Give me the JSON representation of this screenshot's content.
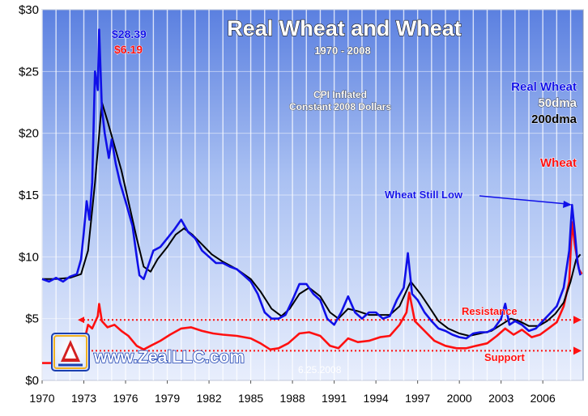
{
  "chart_data": {
    "type": "line",
    "title": "Real Wheat and Wheat",
    "subtitle": "1970 - 2008",
    "note_lines": [
      "CPI Inflated",
      "Constant 2008 Dollars"
    ],
    "xlim": [
      1970,
      2008.9
    ],
    "ylim": [
      0,
      30
    ],
    "x_ticks": [
      "1970",
      "1973",
      "1976",
      "1979",
      "1982",
      "1985",
      "1988",
      "1991",
      "1994",
      "1997",
      "2000",
      "2003",
      "2006"
    ],
    "y_ticks": [
      "$0",
      "$5",
      "$10",
      "$15",
      "$20",
      "$25",
      "$30"
    ],
    "grid": true,
    "legend": [
      {
        "label": "Real Wheat",
        "color": "#1010e8"
      },
      {
        "label": "50dma",
        "color": "#ffffff"
      },
      {
        "label": "200dma",
        "color": "#000000"
      },
      {
        "label": "Wheat",
        "color": "#ff1010"
      }
    ],
    "series": [
      {
        "name": "Real Wheat",
        "color": "#1010e8",
        "points": [
          [
            1970,
            8.2
          ],
          [
            1970.5,
            8.0
          ],
          [
            1971,
            8.3
          ],
          [
            1971.5,
            8.0
          ],
          [
            1972,
            8.4
          ],
          [
            1972.5,
            8.6
          ],
          [
            1972.8,
            9.8
          ],
          [
            1973.0,
            12.0
          ],
          [
            1973.2,
            14.5
          ],
          [
            1973.4,
            13.0
          ],
          [
            1973.6,
            16.0
          ],
          [
            1973.8,
            25.0
          ],
          [
            1974.0,
            23.5
          ],
          [
            1974.1,
            28.39
          ],
          [
            1974.3,
            22.0
          ],
          [
            1974.5,
            20.0
          ],
          [
            1974.8,
            18.0
          ],
          [
            1975.0,
            19.5
          ],
          [
            1975.3,
            17.5
          ],
          [
            1975.6,
            16.0
          ],
          [
            1976.0,
            14.5
          ],
          [
            1976.5,
            12.5
          ],
          [
            1976.8,
            10.0
          ],
          [
            1977.0,
            8.5
          ],
          [
            1977.3,
            8.2
          ],
          [
            1977.7,
            9.5
          ],
          [
            1978.0,
            10.5
          ],
          [
            1978.5,
            10.8
          ],
          [
            1979.0,
            11.5
          ],
          [
            1979.5,
            12.2
          ],
          [
            1980.0,
            13.0
          ],
          [
            1980.5,
            12.0
          ],
          [
            1981.0,
            11.5
          ],
          [
            1981.5,
            10.5
          ],
          [
            1982.0,
            10.0
          ],
          [
            1982.5,
            9.5
          ],
          [
            1983.0,
            9.5
          ],
          [
            1983.5,
            9.2
          ],
          [
            1984.0,
            9.0
          ],
          [
            1984.5,
            8.5
          ],
          [
            1985.0,
            8.0
          ],
          [
            1985.5,
            7.0
          ],
          [
            1986.0,
            5.5
          ],
          [
            1986.5,
            5.0
          ],
          [
            1987.0,
            5.0
          ],
          [
            1987.5,
            5.3
          ],
          [
            1988.0,
            6.5
          ],
          [
            1988.5,
            7.8
          ],
          [
            1989.0,
            7.8
          ],
          [
            1989.5,
            7.0
          ],
          [
            1990.0,
            6.5
          ],
          [
            1990.5,
            5.0
          ],
          [
            1991.0,
            4.5
          ],
          [
            1991.5,
            5.5
          ],
          [
            1992.0,
            6.8
          ],
          [
            1992.5,
            5.5
          ],
          [
            1993.0,
            5.0
          ],
          [
            1993.5,
            5.5
          ],
          [
            1994.0,
            5.5
          ],
          [
            1994.5,
            5.0
          ],
          [
            1995.0,
            5.2
          ],
          [
            1995.5,
            6.5
          ],
          [
            1996.0,
            7.5
          ],
          [
            1996.3,
            10.3
          ],
          [
            1996.6,
            7.0
          ],
          [
            1997.0,
            6.5
          ],
          [
            1997.5,
            5.5
          ],
          [
            1998.0,
            4.8
          ],
          [
            1998.5,
            4.2
          ],
          [
            1999.0,
            4.0
          ],
          [
            1999.5,
            3.7
          ],
          [
            2000.0,
            3.5
          ],
          [
            2000.5,
            3.4
          ],
          [
            2001.0,
            3.8
          ],
          [
            2001.5,
            3.9
          ],
          [
            2002.0,
            3.9
          ],
          [
            2002.5,
            4.2
          ],
          [
            2003.0,
            5.0
          ],
          [
            2003.3,
            6.2
          ],
          [
            2003.6,
            4.5
          ],
          [
            2004.0,
            4.8
          ],
          [
            2004.5,
            4.5
          ],
          [
            2005.0,
            4.0
          ],
          [
            2005.5,
            4.2
          ],
          [
            2006.0,
            4.8
          ],
          [
            2006.5,
            5.4
          ],
          [
            2007.0,
            6.0
          ],
          [
            2007.5,
            7.5
          ],
          [
            2007.9,
            10.5
          ],
          [
            2008.1,
            14.2
          ],
          [
            2008.3,
            12.0
          ],
          [
            2008.5,
            9.5
          ],
          [
            2008.7,
            8.5
          ]
        ]
      },
      {
        "name": "200dma",
        "color": "#000000",
        "points": [
          [
            1970,
            8.2
          ],
          [
            1971,
            8.2
          ],
          [
            1972,
            8.3
          ],
          [
            1972.8,
            8.6
          ],
          [
            1973.3,
            10.5
          ],
          [
            1973.8,
            16.0
          ],
          [
            1974.3,
            22.5
          ],
          [
            1974.7,
            21.0
          ],
          [
            1975.2,
            19.0
          ],
          [
            1975.7,
            17.0
          ],
          [
            1976.2,
            14.5
          ],
          [
            1976.8,
            11.5
          ],
          [
            1977.3,
            9.2
          ],
          [
            1977.8,
            8.8
          ],
          [
            1978.3,
            9.8
          ],
          [
            1979.0,
            10.8
          ],
          [
            1979.6,
            11.8
          ],
          [
            1980.2,
            12.3
          ],
          [
            1980.8,
            11.8
          ],
          [
            1981.5,
            11.0
          ],
          [
            1982.2,
            10.2
          ],
          [
            1983.0,
            9.6
          ],
          [
            1984.0,
            9.0
          ],
          [
            1985.0,
            8.2
          ],
          [
            1985.7,
            7.2
          ],
          [
            1986.5,
            5.8
          ],
          [
            1987.2,
            5.2
          ],
          [
            1987.8,
            5.8
          ],
          [
            1988.5,
            7.0
          ],
          [
            1989.2,
            7.5
          ],
          [
            1990.0,
            6.8
          ],
          [
            1990.7,
            5.5
          ],
          [
            1991.3,
            5.0
          ],
          [
            1992.0,
            5.8
          ],
          [
            1992.7,
            5.6
          ],
          [
            1993.5,
            5.3
          ],
          [
            1994.3,
            5.3
          ],
          [
            1995.0,
            5.3
          ],
          [
            1995.7,
            6.0
          ],
          [
            1996.5,
            8.0
          ],
          [
            1997.2,
            7.0
          ],
          [
            1997.8,
            6.0
          ],
          [
            1998.5,
            4.8
          ],
          [
            1999.2,
            4.2
          ],
          [
            2000.0,
            3.8
          ],
          [
            2000.7,
            3.6
          ],
          [
            2001.5,
            3.8
          ],
          [
            2002.3,
            4.0
          ],
          [
            2003.0,
            4.5
          ],
          [
            2003.7,
            5.0
          ],
          [
            2004.3,
            4.8
          ],
          [
            2005.0,
            4.4
          ],
          [
            2005.7,
            4.4
          ],
          [
            2006.3,
            4.8
          ],
          [
            2006.9,
            5.4
          ],
          [
            2007.5,
            6.3
          ],
          [
            2008.0,
            8.0
          ],
          [
            2008.4,
            9.8
          ],
          [
            2008.7,
            10.2
          ]
        ]
      },
      {
        "name": "Wheat",
        "color": "#ff1010",
        "points": [
          [
            1970,
            1.4
          ],
          [
            1971,
            1.4
          ],
          [
            1972,
            1.5
          ],
          [
            1972.8,
            2.0
          ],
          [
            1973.0,
            3.0
          ],
          [
            1973.3,
            4.5
          ],
          [
            1973.6,
            4.2
          ],
          [
            1974.0,
            5.2
          ],
          [
            1974.1,
            6.19
          ],
          [
            1974.3,
            4.8
          ],
          [
            1974.7,
            4.3
          ],
          [
            1975.2,
            4.5
          ],
          [
            1975.7,
            4.0
          ],
          [
            1976.2,
            3.6
          ],
          [
            1976.8,
            2.8
          ],
          [
            1977.3,
            2.5
          ],
          [
            1977.8,
            2.8
          ],
          [
            1978.5,
            3.2
          ],
          [
            1979.2,
            3.7
          ],
          [
            1980.0,
            4.2
          ],
          [
            1980.7,
            4.3
          ],
          [
            1981.5,
            4.0
          ],
          [
            1982.3,
            3.8
          ],
          [
            1983.0,
            3.7
          ],
          [
            1984.0,
            3.6
          ],
          [
            1985.0,
            3.4
          ],
          [
            1985.7,
            3.0
          ],
          [
            1986.4,
            2.5
          ],
          [
            1987.0,
            2.6
          ],
          [
            1987.7,
            3.0
          ],
          [
            1988.5,
            3.8
          ],
          [
            1989.2,
            3.9
          ],
          [
            1990.0,
            3.6
          ],
          [
            1990.7,
            2.8
          ],
          [
            1991.3,
            2.6
          ],
          [
            1992.0,
            3.4
          ],
          [
            1992.7,
            3.1
          ],
          [
            1993.5,
            3.2
          ],
          [
            1994.3,
            3.5
          ],
          [
            1995.0,
            3.6
          ],
          [
            1995.7,
            4.5
          ],
          [
            1996.2,
            5.5
          ],
          [
            1996.4,
            7.1
          ],
          [
            1996.8,
            4.8
          ],
          [
            1997.5,
            4.0
          ],
          [
            1998.2,
            3.2
          ],
          [
            1999.0,
            2.8
          ],
          [
            1999.8,
            2.6
          ],
          [
            2000.5,
            2.6
          ],
          [
            2001.2,
            2.8
          ],
          [
            2002.0,
            3.0
          ],
          [
            2002.7,
            3.6
          ],
          [
            2003.3,
            4.2
          ],
          [
            2003.9,
            3.7
          ],
          [
            2004.5,
            4.1
          ],
          [
            2005.2,
            3.5
          ],
          [
            2005.8,
            3.7
          ],
          [
            2006.4,
            4.2
          ],
          [
            2007.0,
            4.7
          ],
          [
            2007.5,
            6.0
          ],
          [
            2007.9,
            8.0
          ],
          [
            2008.1,
            12.8
          ],
          [
            2008.3,
            11.0
          ],
          [
            2008.6,
            9.0
          ],
          [
            2008.8,
            8.6
          ]
        ]
      }
    ],
    "reference_lines": [
      {
        "label": "Resistance",
        "value": 4.9,
        "color": "#ff1010"
      },
      {
        "label": "Support",
        "value": 2.4,
        "color": "#ff1010"
      }
    ],
    "annotations": {
      "peak_real": "$28.39",
      "peak_nominal": "$6.19",
      "wheat_still_low": "Wheat Still Low",
      "website": "www.ZealLLC.com",
      "date_stamp": "6.25.2008"
    }
  }
}
